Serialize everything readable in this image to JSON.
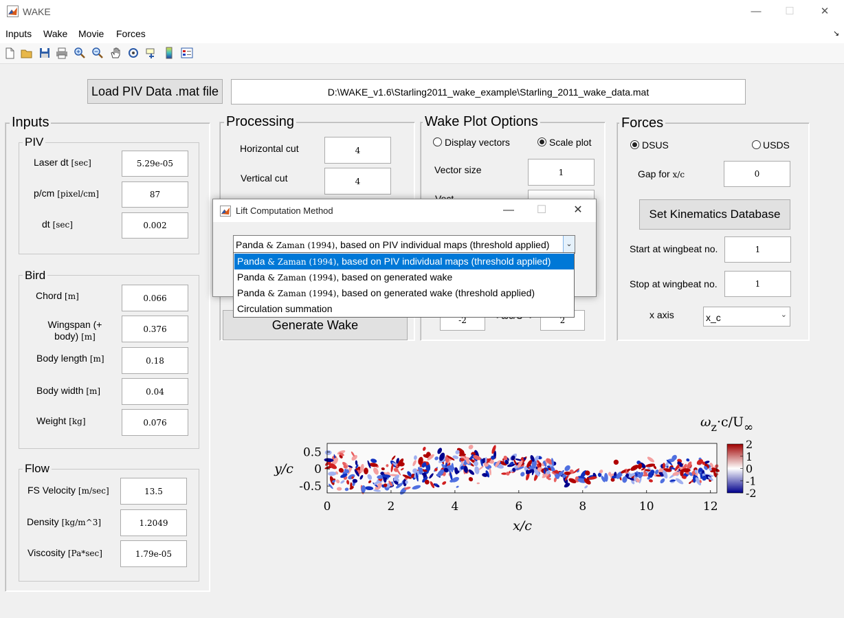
{
  "window": {
    "title": "WAKE",
    "minimize": "—",
    "maximize": "☐",
    "close": "✕"
  },
  "menu": [
    "Inputs",
    "Wake",
    "Movie",
    "Forces"
  ],
  "menu_arrow": "↘",
  "toolbar_icons": [
    "new-file-icon",
    "open-folder-icon",
    "save-icon",
    "print-icon",
    "zoom-in-icon",
    "zoom-out-icon",
    "pan-hand-icon",
    "rotate-3d-icon",
    "data-cursor-icon",
    "colorbar-icon",
    "legend-icon"
  ],
  "load": {
    "button": "Load PIV Data .mat file",
    "path": "D:\\WAKE_v1.6\\Starling2011_wake_example\\Starling_2011_wake_data.mat"
  },
  "inputs": {
    "title": "Inputs",
    "piv": {
      "title": "PIV",
      "laser_dt": {
        "label": "Laser dt",
        "unit": "[sec]",
        "value": "5.29e-05"
      },
      "pcm": {
        "label": "p/cm",
        "unit": "[pixel/cm]",
        "value": "87"
      },
      "dt": {
        "label": "dt",
        "unit": "[sec]",
        "value": "0.002"
      }
    },
    "bird": {
      "title": "Bird",
      "chord": {
        "label": "Chord",
        "unit": "[m]",
        "value": "0.066"
      },
      "wingspan": {
        "label1": "Wingspan (+",
        "label2": "body)",
        "unit": "[m]",
        "value": "0.376"
      },
      "body_length": {
        "label": "Body length",
        "unit": "[m]",
        "value": "0.18"
      },
      "body_width": {
        "label": "Body width",
        "unit": "[m]",
        "value": "0.04"
      },
      "weight": {
        "label": "Weight",
        "unit": "[kg]",
        "value": "0.076"
      }
    },
    "flow": {
      "title": "Flow",
      "velocity": {
        "label": "FS Velocity",
        "unit": "[m/sec]",
        "value": "13.5"
      },
      "density": {
        "label": "Density",
        "unit": "[kg/m^3]",
        "value": "1.2049"
      },
      "viscosity": {
        "label": "Viscosity",
        "unit": "[Pa*sec]",
        "value": "1.79e-05"
      }
    }
  },
  "processing": {
    "title": "Processing",
    "hcut": {
      "label": "Horizontal cut",
      "value": "4"
    },
    "vcut": {
      "label": "Vertical cut",
      "value": "4"
    },
    "generate": "Generate Wake"
  },
  "wake_plot": {
    "title": "Wake Plot Options",
    "display_vectors": "Display vectors",
    "scale_plot": "Scale plot",
    "vector_size": {
      "label": "Vector size",
      "value": "1"
    },
    "partial_label": "Vect",
    "range_min": "-2",
    "range_label": "< ωc/U <",
    "range_max": "2"
  },
  "forces": {
    "title": "Forces",
    "dsus": "DSUS",
    "usds": "USDS",
    "gap": {
      "label": "Gap for ",
      "unit": "x/c",
      "value": "0"
    },
    "kin_button": "Set Kinematics Database",
    "start": {
      "label": "Start at wingbeat no.",
      "value": "1"
    },
    "stop": {
      "label": "Stop at wingbeat no.",
      "value": "1"
    },
    "xaxis": {
      "label": "x axis",
      "value": "x_c"
    }
  },
  "dialog": {
    "title": "Lift Computation Method",
    "selected": {
      "pre": "Panda ",
      "mid": "& Zaman (1994)",
      "post": ", based on PIV individual maps (threshold applied)"
    },
    "options": [
      {
        "pre": "Panda ",
        "mid": "& Zaman (1994)",
        "post": ", based on PIV individual maps (threshold applied)"
      },
      {
        "pre": "Panda ",
        "mid": "& Zaman (1994)",
        "post": ", based on generated wake"
      },
      {
        "pre": "Panda ",
        "mid": "& Zaman (1994)",
        "post": ", based on generated wake (threshold applied)"
      },
      {
        "pre": "Circulation summation",
        "mid": "",
        "post": ""
      }
    ]
  },
  "chart_data": {
    "type": "heatmap",
    "xlabel": "x/c",
    "ylabel": "y/c",
    "xlim": [
      0,
      12.2
    ],
    "ylim": [
      -0.7,
      0.75
    ],
    "xticks": [
      "0",
      "2",
      "4",
      "6",
      "8",
      "10",
      "12"
    ],
    "yticks": [
      "0.5",
      "0",
      "-0.5"
    ],
    "colorbar": {
      "title": "ωz·c/U∞",
      "title_base": "ω",
      "title_sub": "z",
      "title_mid": "·c/U",
      "title_end": "∞",
      "range": [
        -2,
        2
      ],
      "ticks": [
        "2",
        "1",
        "0",
        "-1",
        "-2"
      ],
      "colors": [
        "#a00000",
        "#ffffff",
        "#00008c"
      ]
    }
  }
}
